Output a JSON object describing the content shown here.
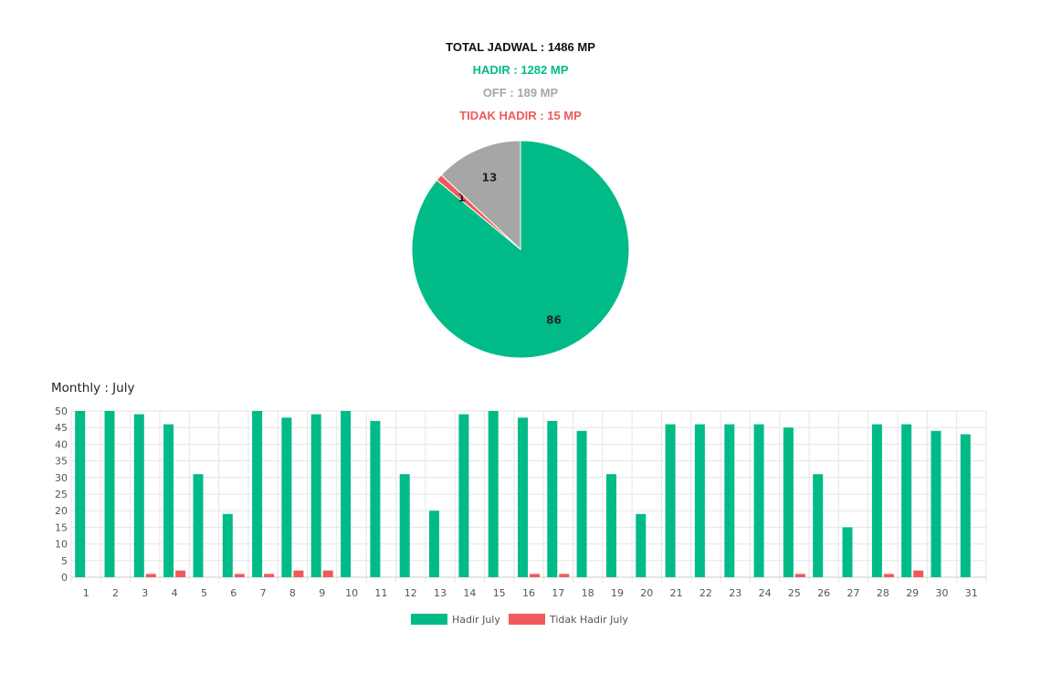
{
  "summary": {
    "total": "TOTAL JADWAL : 1486 MP",
    "hadir": "HADIR : 1282 MP",
    "off": "OFF : 189 MP",
    "tidak_hadir": "TIDAK HADIR : 15 MP"
  },
  "colors": {
    "hadir": "#00bb87",
    "off": "#a6a6a6",
    "tidak_hadir": "#f05a5a",
    "total": "#111111",
    "grid": "#e6e6e6",
    "axis_text": "#555555"
  },
  "monthly": {
    "title": "Monthly : July"
  },
  "chart_data": [
    {
      "type": "pie",
      "slices": [
        {
          "label": "Hadir",
          "value": 86,
          "data_label": "86",
          "color": "#00bb87"
        },
        {
          "label": "Tidak Hadir",
          "value": 1,
          "data_label": "1",
          "color": "#f05a5a"
        },
        {
          "label": "Off",
          "value": 13,
          "data_label": "13",
          "color": "#a6a6a6"
        }
      ],
      "start_angle_deg": 0,
      "direction": "clockwise"
    },
    {
      "type": "bar",
      "categories": [
        "1",
        "2",
        "3",
        "4",
        "5",
        "6",
        "7",
        "8",
        "9",
        "10",
        "11",
        "12",
        "13",
        "14",
        "15",
        "16",
        "17",
        "18",
        "19",
        "20",
        "21",
        "22",
        "23",
        "24",
        "25",
        "26",
        "27",
        "28",
        "29",
        "30",
        "31"
      ],
      "series": [
        {
          "name": "Hadir July",
          "color": "#00bb87",
          "values": [
            50,
            50,
            49,
            46,
            31,
            19,
            50,
            48,
            49,
            50,
            47,
            31,
            20,
            49,
            50,
            48,
            47,
            44,
            31,
            19,
            46,
            46,
            46,
            46,
            45,
            31,
            15,
            46,
            46,
            44,
            43
          ]
        },
        {
          "name": "Tidak Hadir July",
          "color": "#f05a5a",
          "values": [
            0,
            0,
            1,
            2,
            0,
            1,
            1,
            2,
            2,
            0,
            0,
            0,
            0,
            0,
            0,
            1,
            1,
            0,
            0,
            0,
            0,
            0,
            0,
            0,
            1,
            0,
            0,
            1,
            2,
            0,
            0
          ]
        }
      ],
      "ylim": [
        0,
        50
      ],
      "yticks": [
        0,
        5,
        10,
        15,
        20,
        25,
        30,
        35,
        40,
        45,
        50
      ],
      "grid": true,
      "legend": "bottom"
    }
  ]
}
